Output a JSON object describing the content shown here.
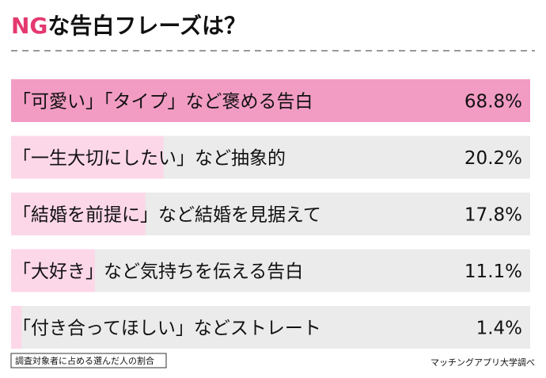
{
  "chart_data": {
    "type": "bar",
    "orientation": "horizontal",
    "title_parts": [
      "NG",
      "な告白フレーズは？"
    ],
    "title_colors": [
      "#e4386f",
      "#111111"
    ],
    "categories": [
      "「可愛い」「タイプ」など褒める告白",
      "「一生大切にしたい」など抽象的",
      "「結婚を前提に」など結婚を見据えて",
      "「大好き」など気持ちを伝える告白",
      "「付き合ってほしい」などストレート"
    ],
    "values": [
      68.8,
      20.2,
      17.8,
      11.1,
      1.4
    ],
    "value_labels": [
      "68.8%",
      "20.2%",
      "17.8%",
      "11.1%",
      "1.4%"
    ],
    "colors": [
      "#f29cc4",
      "#fcd7e8",
      "#fcd7e8",
      "#fcd7e8",
      "#fcd7e8"
    ],
    "track_color": "#ebebeb",
    "xlim": [
      0,
      68.8
    ],
    "note": "調査対象者に占める選んだ人の割合",
    "source": "マッチングアプリ大学調べ"
  }
}
